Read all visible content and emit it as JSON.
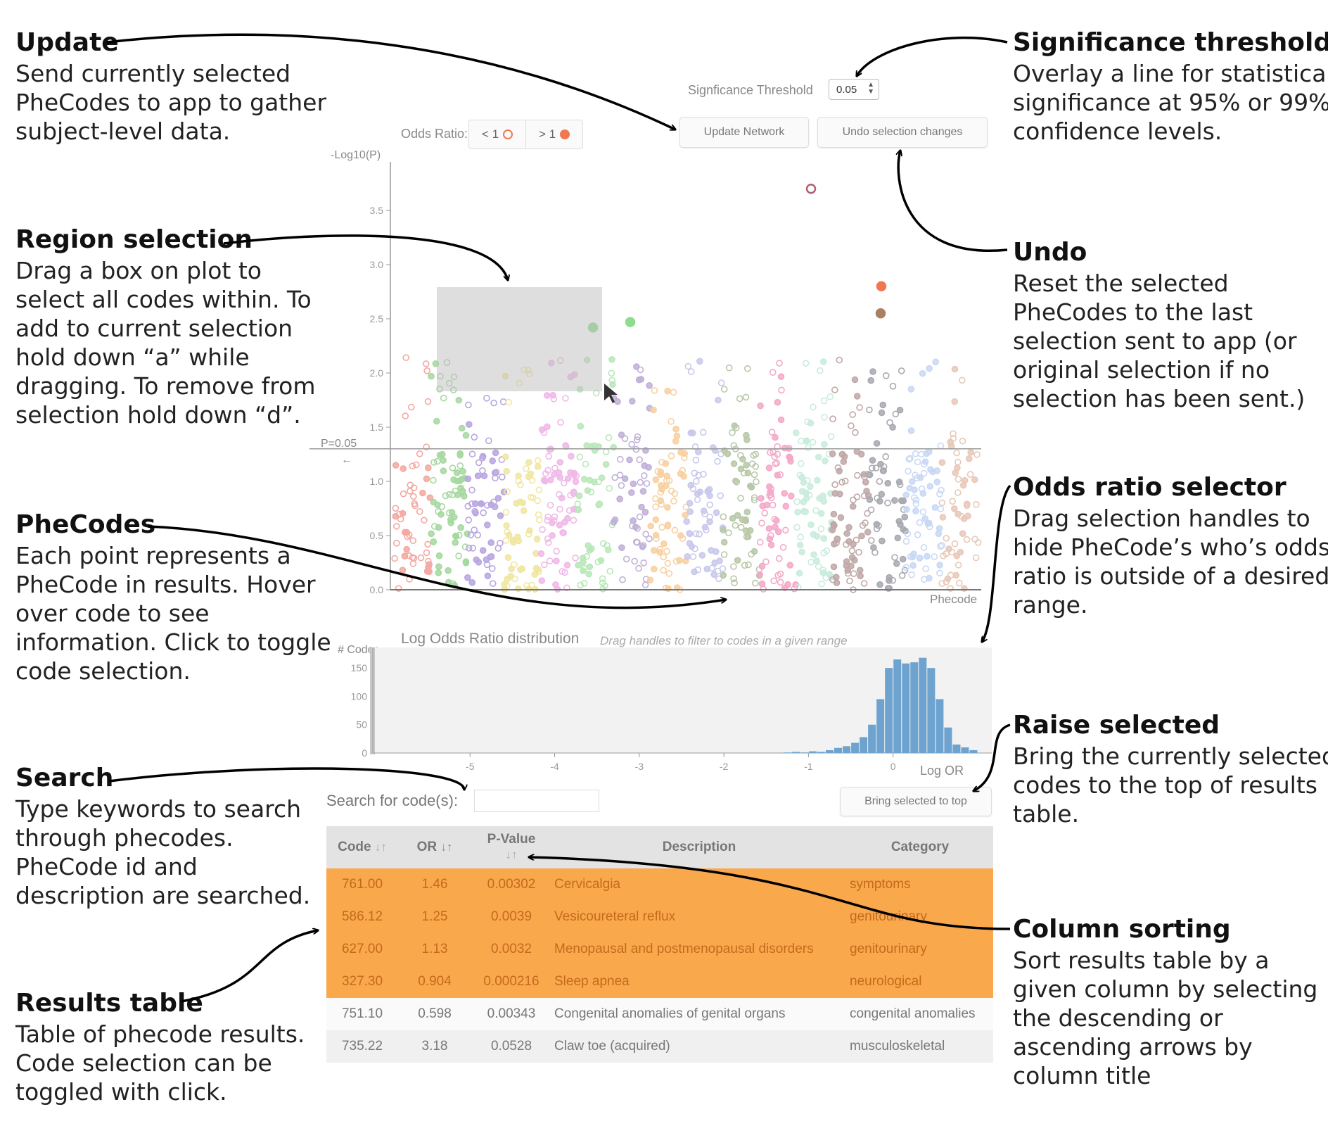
{
  "annotations": {
    "update": {
      "title": "Update",
      "lines": [
        "Send currently selected",
        "PheCodes to app to gather",
        "subject-level data."
      ]
    },
    "region": {
      "title": "Region selection",
      "lines": [
        "Drag a box on plot to",
        "select all codes within. To",
        "add to current selection",
        "hold down “a” while",
        "dragging. To remove from",
        "selection hold down “d”."
      ]
    },
    "phecodes": {
      "title": "PheCodes",
      "lines": [
        "Each point represents a",
        "PheCode in results. Hover",
        "over code to see",
        "information. Click to toggle",
        "code selection."
      ]
    },
    "search": {
      "title": "Search",
      "lines": [
        "Type keywords to search",
        "through phecodes.",
        "PheCode id and",
        "description are searched."
      ]
    },
    "results": {
      "title": "Results table",
      "lines": [
        "Table of phecode results.",
        "Code selection can be",
        "toggled with click."
      ]
    },
    "significance": {
      "title": "Significance threshold",
      "lines": [
        "Overlay a line for statistical",
        "significance at 95% or 99%",
        "confidence levels."
      ]
    },
    "undo": {
      "title": "Undo",
      "lines": [
        "Reset the selected",
        "PheCodes to the last",
        "selection sent to app (or",
        "original selection if no",
        "selection has been sent.)"
      ]
    },
    "odds_selector": {
      "title": "Odds ratio selector",
      "lines": [
        "Drag selection handles to",
        "hide PheCode’s who’s odds",
        "ratio is outside of a desired",
        "range."
      ]
    },
    "raise": {
      "title": "Raise selected",
      "lines": [
        "Bring the currently selected",
        "codes to the top of results",
        "table."
      ]
    },
    "sorting": {
      "title": "Column sorting",
      "lines": [
        "Sort results table by a",
        "given column by selecting",
        "the descending or",
        "ascending arrows by",
        "column title"
      ]
    }
  },
  "controls": {
    "threshold_label": "Signficance Threshold",
    "threshold_value": "0.05",
    "odds_label": "Odds Ratio:",
    "odds_lt": "< 1",
    "odds_gt": "> 1",
    "update_button": "Update Network",
    "undo_button": "Undo selection changes",
    "search_label": "Search for code(s):",
    "search_value": "",
    "raise_button": "Bring selected to top"
  },
  "manhattan": {
    "ylabel": "-Log10(P)",
    "xlabel": "Phecode",
    "threshold_label": "P=0.05",
    "threshold_value": 1.3,
    "yticks": [
      "0.0",
      "0.5",
      "1.0",
      "1.5",
      "2.0",
      "2.5",
      "3.0",
      "3.5"
    ],
    "colors": [
      "#f4a8a0",
      "#a6d8a0",
      "#b8a6e0",
      "#f0e6a0",
      "#f0b8e8",
      "#b8e8b8",
      "#c0b0d8",
      "#f8d0a0",
      "#c8c8ec",
      "#b8c8a8",
      "#f4a8c8",
      "#c8ecdc",
      "#c0a8a8",
      "#a8a8b0",
      "#c8d8f4",
      "#e8c8b8"
    ],
    "highlight_color": "#f4b8c8"
  },
  "histogram": {
    "title": "Log Odds Ratio distribution",
    "subtitle": "Drag handles to filter to codes in a given range",
    "ylabel": "# Codes",
    "xlabel": "Log OR",
    "yticks": [
      "0",
      "50",
      "100",
      "150"
    ],
    "xticks": [
      "-5",
      "-4",
      "-3",
      "-2",
      "-1",
      "0"
    ],
    "bar_color": "#6fa3cf"
  },
  "chart_data": {
    "type": "bar",
    "title": "Log Odds Ratio distribution",
    "xlabel": "Log OR",
    "ylabel": "# Codes",
    "ylim": [
      0,
      180
    ],
    "bin_left_edges": [
      -1.3,
      -1.2,
      -1.1,
      -1.0,
      -0.9,
      -0.8,
      -0.7,
      -0.6,
      -0.5,
      -0.4,
      -0.3,
      -0.2,
      -0.1,
      0.0,
      0.1,
      0.2,
      0.3,
      0.4,
      0.5,
      0.6,
      0.7,
      0.8,
      0.9
    ],
    "values": [
      1,
      2,
      1,
      3,
      2,
      5,
      9,
      12,
      18,
      28,
      50,
      95,
      150,
      165,
      158,
      160,
      168,
      150,
      95,
      45,
      15,
      10,
      5
    ]
  },
  "table": {
    "columns": [
      {
        "label": "Code",
        "arrows": "↓↑",
        "active": false
      },
      {
        "label": "OR",
        "arrows": "↓↑",
        "active": true
      },
      {
        "label": "P-Value",
        "arrows": "↓↑",
        "active": false
      },
      {
        "label": "Description",
        "arrows": "",
        "active": false
      },
      {
        "label": "Category",
        "arrows": "",
        "active": false
      }
    ],
    "rows": [
      {
        "code": "761.00",
        "or": "1.46",
        "p": "0.00302",
        "desc": "Cervicalgia",
        "cat": "symptoms",
        "selected": true
      },
      {
        "code": "586.12",
        "or": "1.25",
        "p": "0.0039",
        "desc": "Vesicoureteral reflux",
        "cat": "genitourinary",
        "selected": true
      },
      {
        "code": "627.00",
        "or": "1.13",
        "p": "0.0032",
        "desc": "Menopausal and postmenopausal disorders",
        "cat": "genitourinary",
        "selected": true
      },
      {
        "code": "327.30",
        "or": "0.904",
        "p": "0.000216",
        "desc": "Sleep apnea",
        "cat": "neurological",
        "selected": true
      },
      {
        "code": "751.10",
        "or": "0.598",
        "p": "0.00343",
        "desc": "Congenital anomalies of genital organs",
        "cat": "congenital anomalies",
        "selected": false
      },
      {
        "code": "735.22",
        "or": "3.18",
        "p": "0.0528",
        "desc": "Claw toe (acquired)",
        "cat": "musculoskeletal",
        "selected": false
      }
    ]
  }
}
